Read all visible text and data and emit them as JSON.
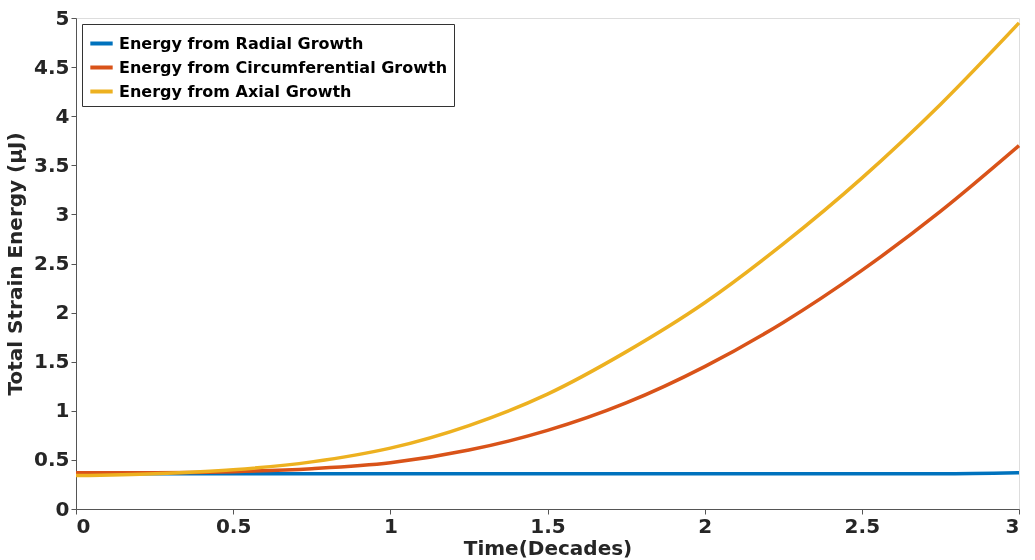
{
  "chart_data": {
    "type": "line",
    "xlabel": "Time(Decades)",
    "ylabel": "Total Strain Energy (μJ)",
    "x": [
      0,
      0.25,
      0.5,
      0.75,
      1,
      1.25,
      1.5,
      1.75,
      2,
      2.25,
      2.5,
      2.75,
      3
    ],
    "series": [
      {
        "name": "Energy from Radial Growth",
        "color": "#0072bd",
        "values": [
          0.36,
          0.36,
          0.36,
          0.36,
          0.36,
          0.36,
          0.36,
          0.36,
          0.36,
          0.36,
          0.36,
          0.36,
          0.37
        ]
      },
      {
        "name": "Energy from Circumferential Growth",
        "color": "#d95319",
        "values": [
          0.37,
          0.37,
          0.38,
          0.41,
          0.47,
          0.6,
          0.8,
          1.08,
          1.45,
          1.9,
          2.43,
          3.03,
          3.7
        ]
      },
      {
        "name": "Energy from Axial Growth",
        "color": "#edb120",
        "values": [
          0.34,
          0.36,
          0.4,
          0.48,
          0.62,
          0.85,
          1.17,
          1.6,
          2.1,
          2.7,
          3.37,
          4.12,
          4.95
        ]
      }
    ],
    "xlim": [
      0,
      3
    ],
    "xticks": [
      0,
      0.5,
      1,
      1.5,
      2,
      2.5,
      3
    ],
    "ylim": [
      0,
      5
    ],
    "yticks": [
      0,
      0.5,
      1,
      1.5,
      2,
      2.5,
      3,
      3.5,
      4,
      4.5,
      5
    ],
    "grid": false,
    "legend": "top left",
    "line_style": "solid",
    "marker": "none"
  }
}
